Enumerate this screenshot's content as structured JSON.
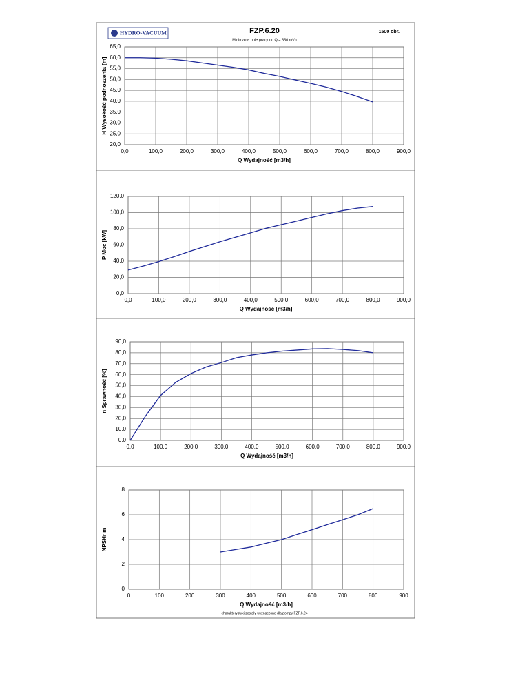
{
  "header": {
    "logo": "HYDRO-VACUUM",
    "title": "FZP.6.20",
    "speed": "1500 obr.",
    "subtitle": "Minimalne pole pracy od Q = 350 m³/h"
  },
  "footer": "charakterystyki zostały wyznaczone dla pompy FZP.6.24",
  "chart_data": [
    {
      "type": "line",
      "x_title": "Q  Wydajność [m3/h]",
      "y_title": "H  Wysokość podnoszenia [m]",
      "color": "#1f2a9a",
      "grid": true,
      "x": [
        0,
        50,
        100,
        150,
        200,
        250,
        300,
        350,
        400,
        450,
        500,
        550,
        600,
        650,
        700,
        750,
        800
      ],
      "values": [
        60,
        60,
        59.8,
        59.3,
        58.6,
        57.6,
        56.6,
        55.6,
        54.4,
        52.8,
        51.4,
        49.8,
        48.2,
        46.5,
        44.5,
        42.2,
        39.7
      ],
      "xlim": [
        0,
        900
      ],
      "ylim": [
        20,
        65
      ],
      "xticks": [
        {
          "value": 0,
          "label": "0,0"
        },
        {
          "value": 100,
          "label": "100,0"
        },
        {
          "value": 200,
          "label": "200,0"
        },
        {
          "value": 300,
          "label": "300,0"
        },
        {
          "value": 400,
          "label": "400,0"
        },
        {
          "value": 500,
          "label": "500,0"
        },
        {
          "value": 600,
          "label": "600,0"
        },
        {
          "value": 700,
          "label": "700,0"
        },
        {
          "value": 800,
          "label": "800,0"
        },
        {
          "value": 900,
          "label": "900,0"
        }
      ],
      "yticks": [
        {
          "value": 20,
          "label": "20,0"
        },
        {
          "value": 25,
          "label": "25,0"
        },
        {
          "value": 30,
          "label": "30,0"
        },
        {
          "value": 35,
          "label": "35,0"
        },
        {
          "value": 40,
          "label": "40,0"
        },
        {
          "value": 45,
          "label": "45,0"
        },
        {
          "value": 50,
          "label": "50,0"
        },
        {
          "value": 55,
          "label": "55,0"
        },
        {
          "value": 60,
          "label": "60,0"
        },
        {
          "value": 65,
          "label": "65,0"
        }
      ]
    },
    {
      "type": "line",
      "x_title": "Q  Wydajność [m3/h]",
      "y_title": "P  Moc [kW]",
      "color": "#1f2a9a",
      "grid": true,
      "x": [
        0,
        50,
        100,
        150,
        200,
        250,
        300,
        350,
        400,
        450,
        500,
        550,
        600,
        650,
        700,
        750,
        800
      ],
      "values": [
        29,
        34,
        39.5,
        45.5,
        52,
        58,
        64,
        69.5,
        75,
        80.5,
        85,
        89.5,
        94,
        98.5,
        102.5,
        105.5,
        107.5
      ],
      "xlim": [
        0,
        900
      ],
      "ylim": [
        0,
        120
      ],
      "xticks": [
        {
          "value": 0,
          "label": "0,0"
        },
        {
          "value": 100,
          "label": "100,0"
        },
        {
          "value": 200,
          "label": "200,0"
        },
        {
          "value": 300,
          "label": "300,0"
        },
        {
          "value": 400,
          "label": "400,0"
        },
        {
          "value": 500,
          "label": "500,0"
        },
        {
          "value": 600,
          "label": "600,0"
        },
        {
          "value": 700,
          "label": "700,0"
        },
        {
          "value": 800,
          "label": "800,0"
        },
        {
          "value": 900,
          "label": "900,0"
        }
      ],
      "yticks": [
        {
          "value": 0,
          "label": "0,0"
        },
        {
          "value": 20,
          "label": "20,0"
        },
        {
          "value": 40,
          "label": "40,0"
        },
        {
          "value": 60,
          "label": "60,0"
        },
        {
          "value": 80,
          "label": "80,0"
        },
        {
          "value": 100,
          "label": "100,0"
        },
        {
          "value": 120,
          "label": "120,0"
        }
      ]
    },
    {
      "type": "line",
      "x_title": "Q  Wydajność [m3/h]",
      "y_title": "n  Sprawność [%]",
      "color": "#1f2a9a",
      "grid": true,
      "x": [
        0,
        50,
        100,
        150,
        200,
        250,
        300,
        350,
        400,
        450,
        500,
        550,
        600,
        650,
        700,
        750,
        800
      ],
      "values": [
        0,
        22,
        41,
        53,
        61,
        67,
        71,
        75.5,
        78,
        80,
        81.5,
        82.5,
        83.5,
        83.8,
        83,
        82,
        80
      ],
      "xlim": [
        0,
        900
      ],
      "ylim": [
        0,
        90
      ],
      "xticks": [
        {
          "value": 0,
          "label": "0,0"
        },
        {
          "value": 100,
          "label": "100,0"
        },
        {
          "value": 200,
          "label": "200,0"
        },
        {
          "value": 300,
          "label": "300,0"
        },
        {
          "value": 400,
          "label": "400,0"
        },
        {
          "value": 500,
          "label": "500,0"
        },
        {
          "value": 600,
          "label": "600,0"
        },
        {
          "value": 700,
          "label": "700,0"
        },
        {
          "value": 800,
          "label": "800,0"
        },
        {
          "value": 900,
          "label": "900,0"
        }
      ],
      "yticks": [
        {
          "value": 0,
          "label": "0,0"
        },
        {
          "value": 10,
          "label": "10,0"
        },
        {
          "value": 20,
          "label": "20,0"
        },
        {
          "value": 30,
          "label": "30,0"
        },
        {
          "value": 40,
          "label": "40,0"
        },
        {
          "value": 50,
          "label": "50,0"
        },
        {
          "value": 60,
          "label": "60,0"
        },
        {
          "value": 70,
          "label": "70,0"
        },
        {
          "value": 80,
          "label": "80,0"
        },
        {
          "value": 90,
          "label": "90,0"
        }
      ]
    },
    {
      "type": "line",
      "x_title": "Q  Wydajność [m3/h]",
      "y_title": "NPSHr  m",
      "color": "#1f2a9a",
      "grid": true,
      "x": [
        300,
        350,
        400,
        450,
        500,
        550,
        600,
        650,
        700,
        750,
        800
      ],
      "values": [
        3.0,
        3.2,
        3.4,
        3.7,
        4.0,
        4.4,
        4.8,
        5.2,
        5.6,
        6.0,
        6.5
      ],
      "xlim": [
        0,
        900
      ],
      "ylim": [
        0,
        8
      ],
      "xticks": [
        0,
        100,
        200,
        300,
        400,
        500,
        600,
        700,
        800,
        900
      ],
      "yticks": [
        0,
        2,
        4,
        6,
        8
      ]
    }
  ]
}
